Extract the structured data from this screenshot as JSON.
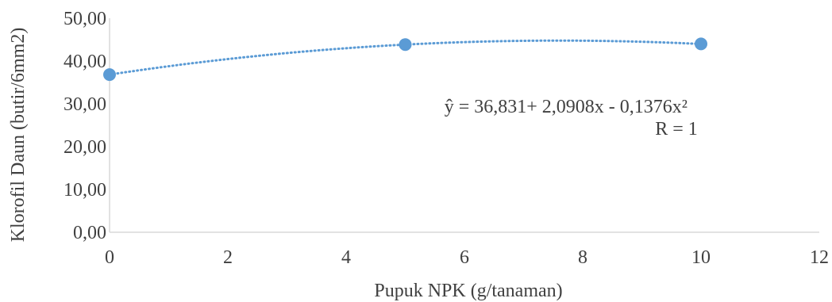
{
  "chart_data": {
    "type": "scatter",
    "title": "",
    "xlabel": "Pupuk NPK (g/tanaman)",
    "ylabel": "Klorofil Daun (butir/6mm2)",
    "xlim": [
      0,
      12
    ],
    "ylim": [
      0,
      50
    ],
    "x_ticks": [
      0,
      2,
      4,
      6,
      8,
      10,
      12
    ],
    "x_tick_labels": [
      "0",
      "2",
      "4",
      "6",
      "8",
      "10",
      "12"
    ],
    "y_ticks": [
      0,
      10,
      20,
      30,
      40,
      50
    ],
    "y_tick_labels": [
      "0,00",
      "10,00",
      "20,00",
      "30,00",
      "40,00",
      "50,00"
    ],
    "grid": false,
    "legend": "none",
    "series": [
      {
        "x": [
          0,
          5,
          10
        ],
        "y": [
          36.83,
          43.85,
          44.0
        ],
        "marker_color": "#5b9bd5"
      }
    ],
    "trendline": {
      "kind": "polynomial-2",
      "intercept": 36.831,
      "b1": 2.0908,
      "b2": -0.1376,
      "style": "dotted",
      "color": "#5b9bd5"
    },
    "annotations": {
      "equation": "ŷ = 36,831+ 2,0908x - 0,1376x²",
      "r": "R = 1"
    },
    "colors": {
      "axis": "#d9d9d9",
      "text": "#404040"
    }
  }
}
